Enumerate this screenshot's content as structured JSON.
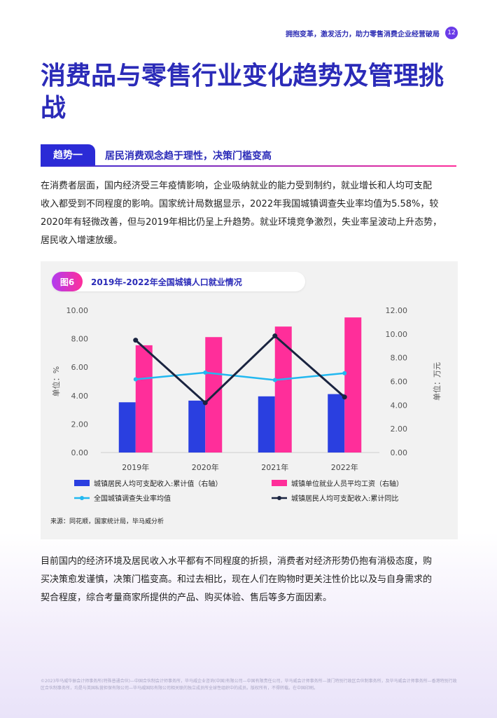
{
  "header": {
    "tagline": "拥抱变革，激发活力，助力零售消费企业经营破局",
    "page_number": "12"
  },
  "page_title": "消费品与零售行业变化趋势及管理挑战",
  "trend": {
    "tag": "趋势一",
    "heading": "居民消费观念趋于理性，决策门槛变高"
  },
  "paragraphs": [
    [
      "在消费者层面，国内经济受三年疫情影响，企业吸纳就业的能力受到制约，就业增长和人均可支配",
      "收入都受到不同程度的影响。国家统计局数据显示，2022年我国城镇调查失业率均值为5.58%，较",
      "2020年有轻微改善，但与2019年相比仍呈上升趋势。就业环境竞争激烈，失业率呈波动上升态势，",
      "居民收入增速放缓。"
    ],
    [
      "目前国内的经济环境及居民收入水平都有不同程度的折损，消费者对经济形势仍抱有消极态度，购",
      "买决策愈发谨慎，决策门槛变高。和过去相比，现在人们在购物时更关注性价比以及与自身需求的",
      "契合程度，综合考量商家所提供的产品、购买体验、售后等多方面因素。"
    ]
  ],
  "figure": {
    "label": "图6",
    "title": "2019年-2022年全国城镇人口就业情况",
    "source": "来源：同花顺，国家统计局，毕马威分析"
  },
  "chart_data": {
    "type": "bar",
    "categories": [
      "2019年",
      "2020年",
      "2021年",
      "2022年"
    ],
    "y_left": {
      "label": "单位：%",
      "range": [
        0,
        10
      ],
      "ticks": [
        "0.00",
        "2.00",
        "4.00",
        "6.00",
        "8.00",
        "10.00"
      ]
    },
    "y_right": {
      "label": "单位：万元",
      "range": [
        0,
        12
      ],
      "ticks": [
        "0.00",
        "2.00",
        "4.00",
        "6.00",
        "8.00",
        "10.00",
        "12.00"
      ]
    },
    "series": [
      {
        "name": "城镇居民人均可支配收入:累计值（右轴）",
        "type": "bar",
        "axis": "right",
        "color": "#2a3fe0",
        "values": [
          4.24,
          4.38,
          4.74,
          4.93
        ]
      },
      {
        "name": "城镇单位就业人员平均工资（右轴）",
        "type": "bar",
        "axis": "right",
        "color": "#ff2e9a",
        "values": [
          9.05,
          9.74,
          10.63,
          11.4
        ]
      },
      {
        "name": "全国城镇调查失业率均值",
        "type": "line",
        "axis": "left",
        "color": "#22b8f0",
        "values": [
          5.15,
          5.62,
          5.1,
          5.58
        ]
      },
      {
        "name": "城镇居民人均可支配收入:累计同比",
        "type": "line",
        "axis": "left",
        "color": "#1a2440",
        "values": [
          7.9,
          3.5,
          8.2,
          3.9
        ]
      }
    ],
    "grid": false,
    "legend_position": "bottom"
  },
  "footer": {
    "copyright": "©2023毕马威华振会计师事务所(特殊普通合伙)—中国合伙制会计师事务所，毕马威企业咨询(中国)有限公司—中国有限责任公司，毕马威会计师事务所—澳门特别行政区合伙制事务所，及毕马威会计师事务所—香港特别行政区合伙制事务所，均是与英国私营担保有限公司—毕马威国际有限公司相关联的独立成员所全球性组织中的成员。版权所有，不得转载。在中国印刷。"
  }
}
